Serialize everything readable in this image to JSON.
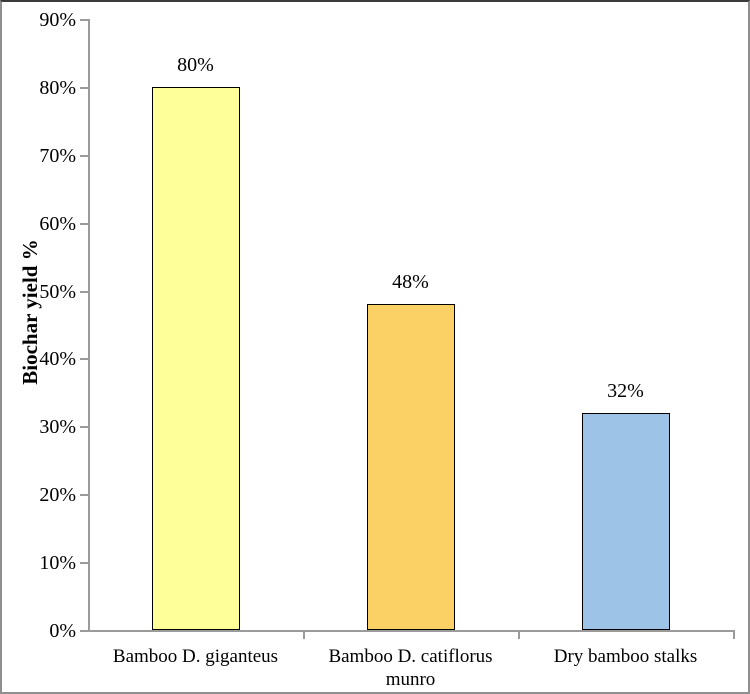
{
  "chart_data": {
    "type": "bar",
    "ylabel": "Biochar yield %",
    "xlabel": "",
    "ylim": [
      0,
      90
    ],
    "ytick_step": 10,
    "yticks": [
      "0%",
      "10%",
      "20%",
      "30%",
      "40%",
      "50%",
      "60%",
      "70%",
      "80%",
      "90%"
    ],
    "categories": [
      "Bamboo D. giganteus",
      "Bamboo D. catiflorus munro",
      "Dry bamboo stalks"
    ],
    "values": [
      80,
      48,
      32
    ],
    "data_labels": [
      "80%",
      "48%",
      "32%"
    ],
    "bar_colors": [
      "#FFFF99",
      "#FBD064",
      "#9DC3E6"
    ],
    "bar_border_color": "#000000",
    "axis_color": "#9b9b9b",
    "text_color": "#000000",
    "background_color": "#FFFFFF",
    "grid": "off",
    "legend": "none"
  }
}
